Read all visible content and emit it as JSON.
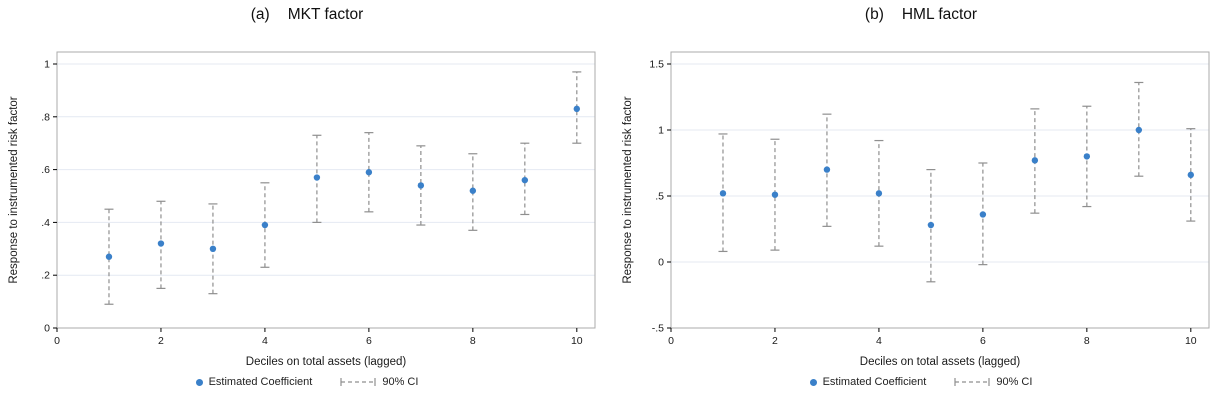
{
  "page": {
    "background": "#ffffff"
  },
  "chart_data": [
    {
      "type": "scatter",
      "panel_label": "(a)",
      "title": "MKT factor",
      "xlabel": "Deciles on total assets (lagged)",
      "ylabel": "Response to instrumented risk factor",
      "x": [
        1,
        2,
        3,
        4,
        5,
        6,
        7,
        8,
        9,
        10
      ],
      "series": [
        {
          "name": "Estimated Coefficient",
          "values": [
            0.27,
            0.32,
            0.3,
            0.39,
            0.57,
            0.59,
            0.54,
            0.52,
            0.56,
            0.83
          ]
        }
      ],
      "ci_90": {
        "lower": [
          0.09,
          0.15,
          0.13,
          0.23,
          0.4,
          0.44,
          0.39,
          0.37,
          0.43,
          0.7
        ],
        "upper": [
          0.45,
          0.48,
          0.47,
          0.55,
          0.73,
          0.74,
          0.69,
          0.66,
          0.7,
          0.97
        ]
      },
      "xlim": [
        0,
        10.35
      ],
      "ylim": [
        0,
        1
      ],
      "xticks": {
        "values": [
          0,
          2,
          4,
          6,
          8,
          10
        ],
        "labels": [
          "0",
          "2",
          "4",
          "6",
          "8",
          "10"
        ]
      },
      "yticks": {
        "values": [
          0,
          0.2,
          0.4,
          0.6,
          0.8,
          1
        ],
        "labels": [
          "0",
          ".2",
          ".4",
          ".6",
          ".8",
          "1"
        ]
      },
      "grid": true,
      "legend": [
        {
          "symbol": "dot",
          "label": "Estimated Coefficient"
        },
        {
          "symbol": "ci-whisker",
          "label": "90% CI"
        }
      ],
      "colors": {
        "point": "#3a80c9",
        "ci": "#8f8f8f",
        "grid": "#e4e9f2",
        "box": "#ababab",
        "axis": "#000000",
        "text": "#1a1a1a"
      }
    },
    {
      "type": "scatter",
      "panel_label": "(b)",
      "title": "HML factor",
      "xlabel": "Deciles on total assets (lagged)",
      "ylabel": "Response to instrumented risk factor",
      "x": [
        1,
        2,
        3,
        4,
        5,
        6,
        7,
        8,
        9,
        10
      ],
      "series": [
        {
          "name": "Estimated Coefficient",
          "values": [
            0.52,
            0.51,
            0.7,
            0.52,
            0.28,
            0.36,
            0.77,
            0.8,
            1.0,
            0.66
          ]
        }
      ],
      "ci_90": {
        "lower": [
          0.08,
          0.09,
          0.27,
          0.12,
          -0.15,
          -0.02,
          0.37,
          0.42,
          0.65,
          0.31
        ],
        "upper": [
          0.97,
          0.93,
          1.12,
          0.92,
          0.7,
          0.75,
          1.16,
          1.18,
          1.36,
          1.01
        ]
      },
      "xlim": [
        0,
        10.35
      ],
      "ylim": [
        -0.5,
        1.5
      ],
      "xticks": {
        "values": [
          0,
          2,
          4,
          6,
          8,
          10
        ],
        "labels": [
          "0",
          "2",
          "4",
          "6",
          "8",
          "10"
        ]
      },
      "yticks": {
        "values": [
          -0.5,
          0,
          0.5,
          1,
          1.5
        ],
        "labels": [
          "-.5",
          "0",
          ".5",
          "1",
          "1.5"
        ]
      },
      "grid": true,
      "legend": [
        {
          "symbol": "dot",
          "label": "Estimated Coefficient"
        },
        {
          "symbol": "ci-whisker",
          "label": "90% CI"
        }
      ],
      "colors": {
        "point": "#3a80c9",
        "ci": "#8f8f8f",
        "grid": "#e4e9f2",
        "box": "#ababab",
        "axis": "#000000",
        "text": "#1a1a1a"
      }
    }
  ]
}
